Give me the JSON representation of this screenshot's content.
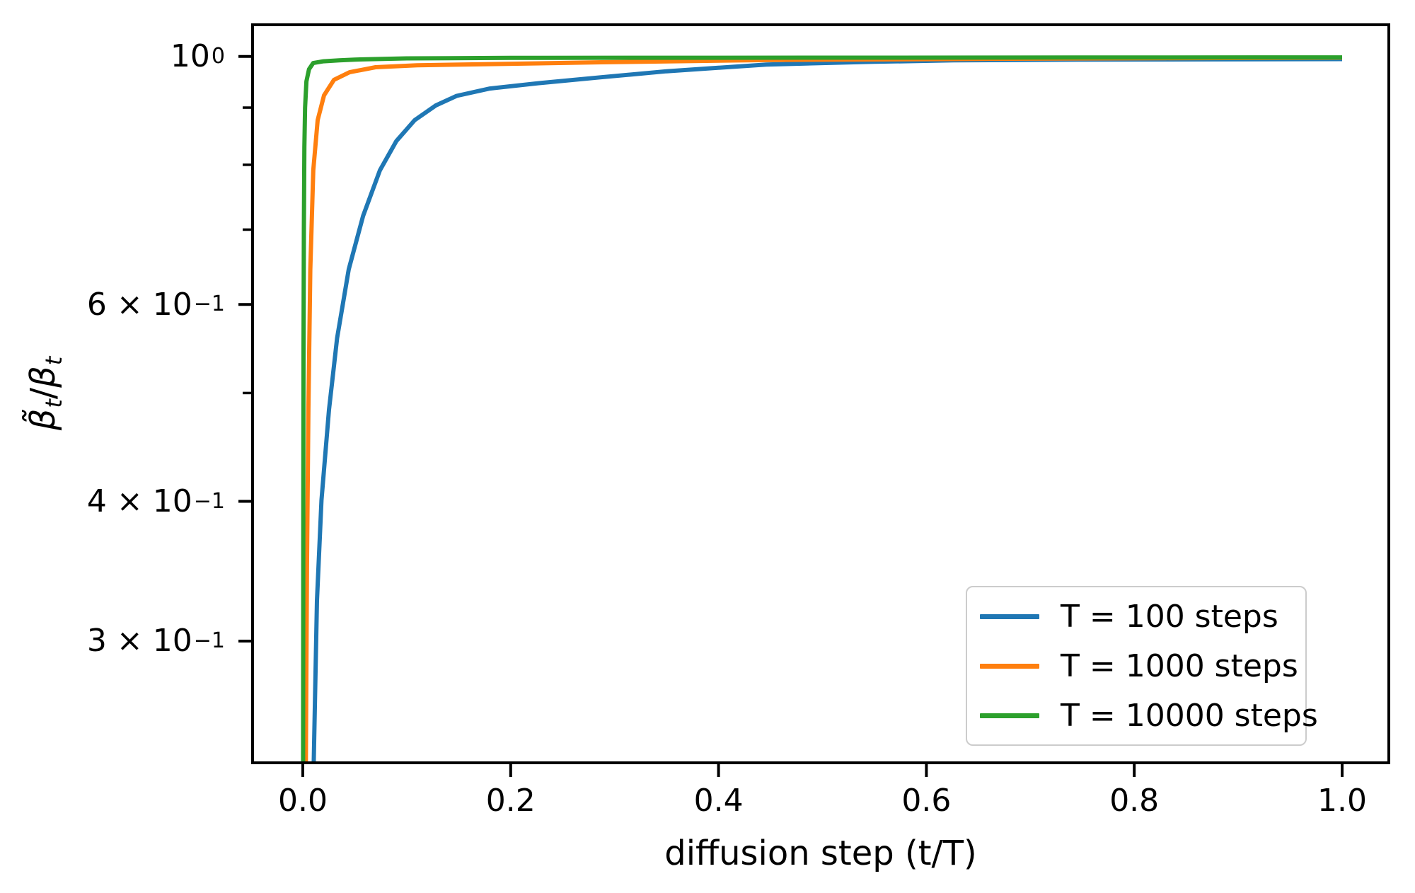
{
  "chart_data": {
    "type": "line",
    "title": "",
    "xlabel": "diffusion step (t/T)",
    "ylabel": "β̃ₜ/βₜ",
    "ylabel_parts": {
      "num_base": "β̃",
      "num_sub": "t",
      "divider": "/",
      "den_base": "β",
      "den_sub": "t"
    },
    "x_scale": "linear",
    "y_scale": "log",
    "grid": false,
    "xlim": [
      -0.0497,
      1.0463
    ],
    "ylim": [
      0.2328,
      1.0705
    ],
    "x_ticks": [
      {
        "value": 0.0,
        "label": "0.0"
      },
      {
        "value": 0.2,
        "label": "0.2"
      },
      {
        "value": 0.4,
        "label": "0.4"
      },
      {
        "value": 0.6,
        "label": "0.6"
      },
      {
        "value": 0.8,
        "label": "0.8"
      },
      {
        "value": 1.0,
        "label": "1.0"
      }
    ],
    "y_ticks_labeled": [
      {
        "value": 1.0,
        "coeff": "",
        "times": "",
        "base": "10",
        "exp": "0"
      },
      {
        "value": 0.6,
        "coeff": "6",
        "times": "×",
        "base": "10",
        "exp": "−1"
      },
      {
        "value": 0.4,
        "coeff": "4",
        "times": "×",
        "base": "10",
        "exp": "−1"
      },
      {
        "value": 0.3,
        "coeff": "3",
        "times": "×",
        "base": "10",
        "exp": "−1"
      }
    ],
    "y_ticks_minor": [
      0.9,
      0.8,
      0.7,
      0.5
    ],
    "legend_position": "lower right",
    "series": [
      {
        "name": "T = 100 steps",
        "color": "#1f77b4",
        "points": [
          [
            0.0103,
            0.2
          ],
          [
            0.0105,
            0.233
          ],
          [
            0.0136,
            0.326
          ],
          [
            0.018,
            0.401
          ],
          [
            0.0252,
            0.483
          ],
          [
            0.033,
            0.56
          ],
          [
            0.0442,
            0.645
          ],
          [
            0.058,
            0.72
          ],
          [
            0.0742,
            0.791
          ],
          [
            0.09,
            0.84
          ],
          [
            0.1076,
            0.877
          ],
          [
            0.128,
            0.904
          ],
          [
            0.148,
            0.922
          ],
          [
            0.18,
            0.936
          ],
          [
            0.23,
            0.947
          ],
          [
            0.287,
            0.958
          ],
          [
            0.35,
            0.97
          ],
          [
            0.446,
            0.9835
          ],
          [
            0.55,
            0.989
          ],
          [
            0.626,
            0.992
          ],
          [
            0.75,
            0.9935
          ],
          [
            0.875,
            0.994
          ],
          [
            1.0,
            0.9945
          ]
        ]
      },
      {
        "name": "T = 1000 steps",
        "color": "#ff7f0e",
        "points": [
          [
            0.0027,
            0.2
          ],
          [
            0.0029,
            0.233
          ],
          [
            0.004,
            0.35
          ],
          [
            0.0054,
            0.483
          ],
          [
            0.0072,
            0.645
          ],
          [
            0.0101,
            0.791
          ],
          [
            0.0143,
            0.877
          ],
          [
            0.0204,
            0.923
          ],
          [
            0.03,
            0.953
          ],
          [
            0.045,
            0.968
          ],
          [
            0.07,
            0.978
          ],
          [
            0.11,
            0.982
          ],
          [
            0.185,
            0.9845
          ],
          [
            0.287,
            0.988
          ],
          [
            0.446,
            0.9925
          ],
          [
            0.65,
            0.995
          ],
          [
            0.83,
            0.9965
          ],
          [
            1.0,
            0.9975
          ]
        ]
      },
      {
        "name": "T = 10000 steps",
        "color": "#2ca02c",
        "points": [
          [
            0.00025,
            0.2
          ],
          [
            0.0003,
            0.233
          ],
          [
            0.0004,
            0.32
          ],
          [
            0.0005,
            0.4
          ],
          [
            0.0007,
            0.55
          ],
          [
            0.001,
            0.7
          ],
          [
            0.0015,
            0.83
          ],
          [
            0.0022,
            0.9
          ],
          [
            0.0035,
            0.95
          ],
          [
            0.006,
            0.974
          ],
          [
            0.01,
            0.9865
          ],
          [
            0.02,
            0.99
          ],
          [
            0.035,
            0.992
          ],
          [
            0.05,
            0.9935
          ],
          [
            0.1,
            0.996
          ],
          [
            0.2,
            0.997
          ],
          [
            0.5,
            0.9975
          ],
          [
            1.0,
            0.998
          ]
        ]
      }
    ]
  }
}
